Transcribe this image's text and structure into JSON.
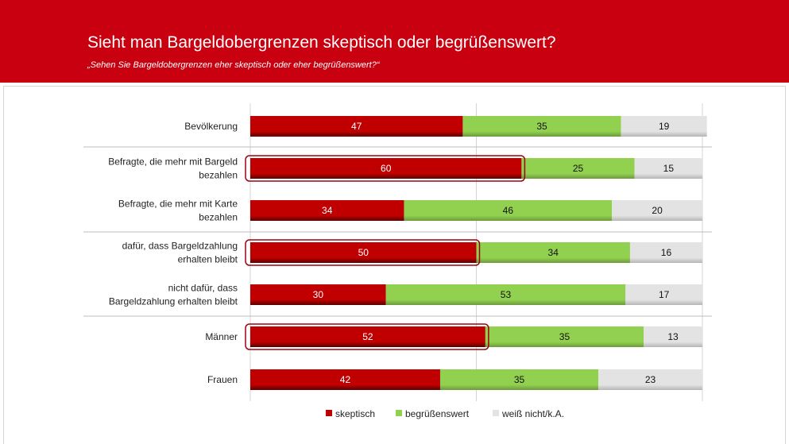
{
  "title": "Sieht man Bargeldobergrenzen skeptisch oder begrüßenswert?",
  "subtitle": "„Sehen Sie Bargeldobergrenzen eher skeptisch oder eher begrüßenswert?“",
  "colors": {
    "header": "#c8000f",
    "skeptisch": "#c00000",
    "begruessenswert": "#92d050",
    "weiss_nicht": "#e3e3e3",
    "highlight": "#a00010"
  },
  "chart_data": {
    "type": "bar",
    "orientation": "horizontal",
    "stacked": true,
    "title": "Sieht man Bargeldobergrenzen skeptisch oder begrüßenswert?",
    "subtitle": "„Sehen Sie Bargeldobergrenzen eher skeptisch oder eher begrüßenswert?“",
    "categories": [
      [
        "Bevölkerung"
      ],
      [
        "Befragte, die mehr mit Bargeld",
        "bezahlen"
      ],
      [
        "Befragte, die mehr mit Karte",
        "bezahlen"
      ],
      [
        "dafür, dass Bargeldzahlung",
        "erhalten bleibt"
      ],
      [
        "nicht dafür, dass",
        "Bargeldzahlung erhalten bleibt"
      ],
      [
        "Männer"
      ],
      [
        "Frauen"
      ]
    ],
    "series": [
      {
        "name": "skeptisch",
        "values": [
          47,
          60,
          34,
          50,
          30,
          52,
          42
        ]
      },
      {
        "name": "begrüßenswert",
        "values": [
          35,
          25,
          46,
          34,
          53,
          35,
          35
        ]
      },
      {
        "name": "weiß nicht/k.A.",
        "values": [
          19,
          15,
          20,
          16,
          17,
          13,
          23
        ]
      }
    ],
    "highlighted": [
      false,
      true,
      false,
      true,
      false,
      true,
      false
    ],
    "xlim": [
      0,
      100
    ],
    "grid": true,
    "legend": "bottom"
  }
}
